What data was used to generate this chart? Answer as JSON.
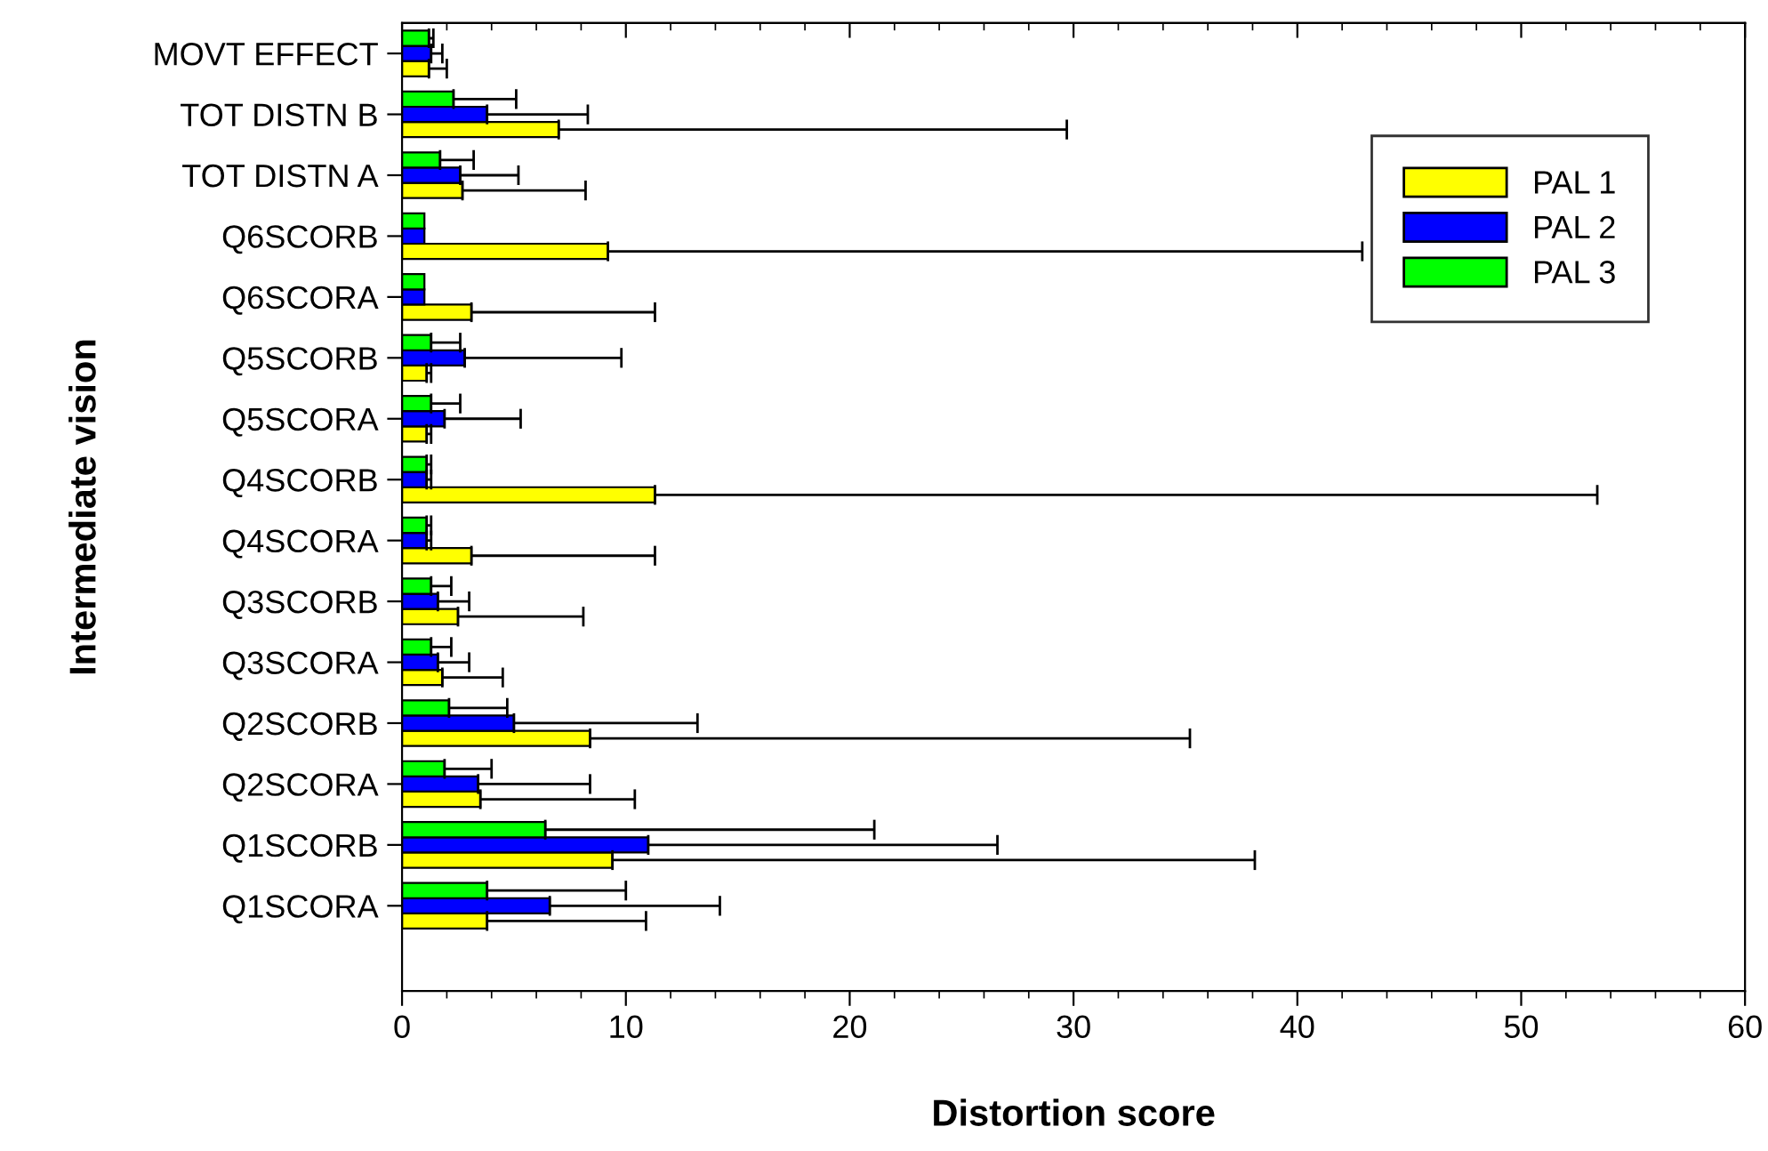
{
  "chart_data": {
    "type": "bar",
    "orientation": "horizontal",
    "xlabel": "Distortion score",
    "ylabel": "Intermediate vision",
    "categories": [
      "MOVT EFFECT",
      "TOT DISTN B",
      "TOT DISTN A",
      "Q6SCORB",
      "Q6SCORA",
      "Q5SCORB",
      "Q5SCORA",
      "Q4SCORB",
      "Q4SCORA",
      "Q3SCORB",
      "Q3SCORA",
      "Q2SCORB",
      "Q2SCORA",
      "Q1SCORB",
      "Q1SCORA"
    ],
    "series": [
      {
        "name": "PAL 1",
        "color": "#ffff00",
        "values": [
          1.2,
          7.0,
          2.7,
          9.2,
          3.1,
          1.1,
          1.1,
          11.3,
          3.1,
          2.5,
          1.8,
          8.4,
          3.5,
          9.4,
          3.8
        ],
        "errors": [
          [
            1.2,
            2.0
          ],
          [
            7.0,
            29.7
          ],
          [
            2.7,
            8.2
          ],
          [
            9.2,
            42.9
          ],
          [
            3.1,
            11.3
          ],
          [
            1.1,
            1.3
          ],
          [
            1.1,
            1.3
          ],
          [
            11.3,
            53.4
          ],
          [
            3.1,
            11.3
          ],
          [
            2.5,
            8.1
          ],
          [
            1.8,
            4.5
          ],
          [
            8.4,
            35.2
          ],
          [
            3.5,
            10.4
          ],
          [
            9.4,
            38.1
          ],
          [
            3.8,
            10.9
          ]
        ]
      },
      {
        "name": "PAL 2",
        "color": "#0000ff",
        "values": [
          1.3,
          3.8,
          2.6,
          1.0,
          1.0,
          2.8,
          1.9,
          1.1,
          1.1,
          1.6,
          1.6,
          5.0,
          3.4,
          11.0,
          6.6
        ],
        "errors": [
          [
            1.3,
            1.8
          ],
          [
            3.8,
            8.3
          ],
          [
            2.6,
            5.2
          ],
          null,
          null,
          [
            2.8,
            9.8
          ],
          [
            1.9,
            5.3
          ],
          [
            1.1,
            1.3
          ],
          [
            1.1,
            1.3
          ],
          [
            1.6,
            3.0
          ],
          [
            1.6,
            3.0
          ],
          [
            5.0,
            13.2
          ],
          [
            3.4,
            8.4
          ],
          [
            11.0,
            26.6
          ],
          [
            6.6,
            14.2
          ]
        ]
      },
      {
        "name": "PAL 3",
        "color": "#00ff00",
        "values": [
          1.2,
          2.3,
          1.7,
          1.0,
          1.0,
          1.3,
          1.3,
          1.1,
          1.1,
          1.3,
          1.3,
          2.1,
          1.9,
          6.4,
          3.8
        ],
        "errors": [
          [
            1.2,
            1.4
          ],
          [
            2.3,
            5.1
          ],
          [
            1.7,
            3.2
          ],
          null,
          null,
          [
            1.3,
            2.6
          ],
          [
            1.3,
            2.6
          ],
          [
            1.1,
            1.3
          ],
          [
            1.1,
            1.3
          ],
          [
            1.3,
            2.2
          ],
          [
            1.3,
            2.2
          ],
          [
            2.1,
            4.7
          ],
          [
            1.9,
            4.0
          ],
          [
            6.4,
            21.1
          ],
          [
            3.8,
            10.0
          ]
        ]
      }
    ],
    "xlim": [
      0,
      60
    ],
    "xticks": [
      0,
      {
        "value": 2,
        "label": null
      },
      {
        "value": 4,
        "label": null
      },
      {
        "value": 6,
        "label": null
      },
      {
        "value": 8,
        "label": null
      },
      10,
      {
        "value": 12,
        "label": null
      },
      {
        "value": 14,
        "label": null
      },
      {
        "value": 16,
        "label": null
      },
      {
        "value": 18,
        "label": null
      },
      20,
      {
        "value": 22,
        "label": null
      },
      {
        "value": 24,
        "label": null
      },
      {
        "value": 26,
        "label": null
      },
      {
        "value": 28,
        "label": null
      },
      30,
      {
        "value": 32,
        "label": null
      },
      {
        "value": 34,
        "label": null
      },
      {
        "value": 36,
        "label": null
      },
      {
        "value": 38,
        "label": null
      },
      40,
      {
        "value": 42,
        "label": null
      },
      {
        "value": 44,
        "label": null
      },
      {
        "value": 46,
        "label": null
      },
      {
        "value": 48,
        "label": null
      },
      50,
      {
        "value": 52,
        "label": null
      },
      {
        "value": 54,
        "label": null
      },
      {
        "value": 56,
        "label": null
      },
      {
        "value": 58,
        "label": null
      },
      60
    ],
    "legend": "top right",
    "grid": false
  }
}
